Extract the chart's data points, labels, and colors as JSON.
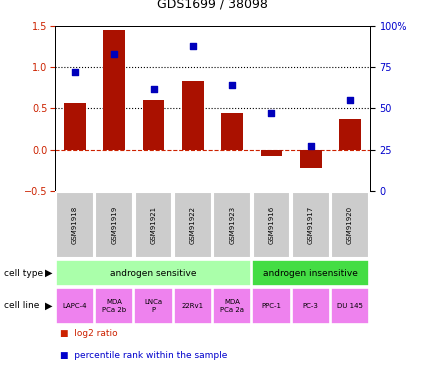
{
  "title": "GDS1699 / 38098",
  "samples": [
    "GSM91918",
    "GSM91919",
    "GSM91921",
    "GSM91922",
    "GSM91923",
    "GSM91916",
    "GSM91917",
    "GSM91920"
  ],
  "log2_ratio": [
    0.57,
    1.45,
    0.6,
    0.83,
    0.45,
    -0.08,
    -0.22,
    0.37
  ],
  "percentile_rank": [
    72,
    83,
    62,
    88,
    64,
    47,
    27,
    55
  ],
  "cell_type_groups": [
    {
      "label": "androgen sensitive",
      "start": 0,
      "end": 5,
      "color": "#aaffaa"
    },
    {
      "label": "androgen insensitive",
      "start": 5,
      "end": 8,
      "color": "#44dd44"
    }
  ],
  "cell_lines": [
    "LAPC-4",
    "MDA\nPCa 2b",
    "LNCa\nP",
    "22Rv1",
    "MDA\nPCa 2a",
    "PPC-1",
    "PC-3",
    "DU 145"
  ],
  "cell_line_color": "#ee82ee",
  "bar_color": "#aa1100",
  "dot_color": "#0000bb",
  "ylim_left": [
    -0.5,
    1.5
  ],
  "ylim_right": [
    0,
    100
  ],
  "right_ticks": [
    0,
    25,
    50,
    75,
    100
  ],
  "right_tick_labels": [
    "0",
    "25",
    "50",
    "75",
    "100%"
  ],
  "left_color": "#cc2200",
  "right_color": "#0000cc",
  "left_yticks": [
    -0.5,
    0.0,
    0.5,
    1.0,
    1.5
  ],
  "sample_box_color": "#cccccc",
  "legend_items": [
    {
      "label": "log2 ratio",
      "color": "#cc2200"
    },
    {
      "label": "percentile rank within the sample",
      "color": "#0000cc"
    }
  ]
}
